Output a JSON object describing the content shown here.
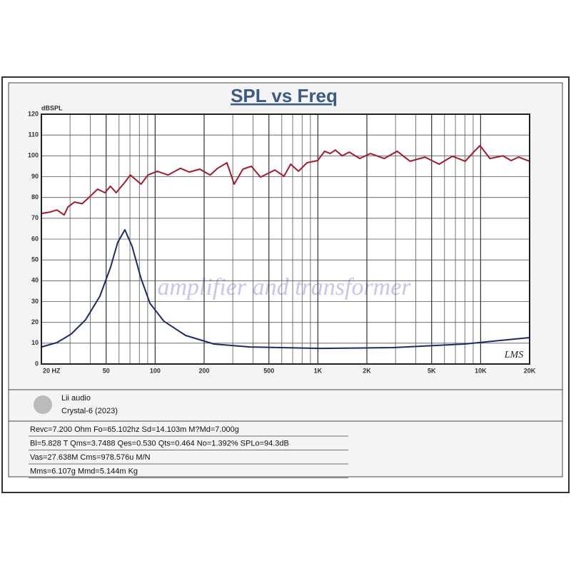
{
  "chart_data": {
    "type": "line",
    "title": "SPL vs Freq",
    "y_label": "dBSPL",
    "annotations": [
      "amplifier and transformer",
      "LMS"
    ],
    "xscale": "log",
    "xlim": [
      20,
      20000
    ],
    "ylim": [
      0,
      120
    ],
    "xticks": [
      {
        "value": 20,
        "label": "20  HZ"
      },
      50,
      100,
      200,
      500,
      {
        "value": 1000,
        "label": "1K"
      },
      {
        "value": 2000,
        "label": "2K"
      },
      {
        "value": 5000,
        "label": "5K"
      },
      {
        "value": 10000,
        "label": "10K"
      },
      {
        "value": 20000,
        "label": "20K"
      }
    ],
    "x_minor_grid": [
      30,
      40,
      60,
      70,
      80,
      90,
      300,
      400,
      600,
      700,
      800,
      900,
      3000,
      4000,
      6000,
      7000,
      8000,
      9000
    ],
    "yticks": [
      0,
      10,
      20,
      30,
      40,
      50,
      60,
      70,
      80,
      90,
      100,
      110,
      120
    ],
    "grid": true,
    "series": [
      {
        "color": "#a31c2b",
        "x": [
          20,
          22.6,
          24.9,
          27.6,
          29.1,
          32,
          35.6,
          39.2,
          44.3,
          49.2,
          53.1,
          57.6,
          65.3,
          70.3,
          81.9,
          90.3,
          103,
          120,
          143,
          162,
          188,
          218,
          242,
          276,
          306,
          346,
          390,
          444,
          544,
          619,
          680,
          760,
          857,
          996,
          1100,
          1190,
          1280,
          1410,
          1560,
          1810,
          2100,
          2560,
          3070,
          3690,
          4550,
          5560,
          6710,
          8040,
          9150,
          9920,
          11400,
          13700,
          15400,
          17100,
          20000
        ],
        "values": [
          72.3,
          73,
          74,
          71.6,
          75.4,
          77.8,
          77,
          80,
          84,
          82.3,
          85.4,
          82.3,
          87.4,
          90.8,
          86.4,
          90.8,
          92.6,
          90.8,
          94,
          92.2,
          93.6,
          90.8,
          94,
          96.7,
          86.4,
          93.6,
          95,
          89.8,
          93.2,
          90.2,
          96,
          92.6,
          96.7,
          97.7,
          102.2,
          101.1,
          102.8,
          100,
          101.8,
          98.7,
          101.1,
          98.7,
          102.2,
          97.4,
          99.4,
          96,
          99.8,
          97.4,
          102.2,
          104.9,
          98.7,
          100,
          97.7,
          99.4,
          97.4
        ]
      },
      {
        "color": "#1f2a6b",
        "x": [
          20,
          24.9,
          30.5,
          37.4,
          45.8,
          53.1,
          58.8,
          65.1,
          72.1,
          81.9,
          93,
          113,
          154,
          230,
          382,
          1050,
          2900,
          7960,
          13200,
          20000
        ],
        "values": [
          8.2,
          10.3,
          14.4,
          21.3,
          32.6,
          46.3,
          58.3,
          64.5,
          56.6,
          41.1,
          29.1,
          20.6,
          13.7,
          9.6,
          8.2,
          7.5,
          7.9,
          9.6,
          11.3,
          12.7
        ]
      }
    ]
  },
  "info": {
    "brand": "Lii audio",
    "model": "Crystal-6 (2023)",
    "params": [
      "Revc=7.200 Ohm Fo=65.102hz Sd=14.103m M?Md=7.000g",
      "Bl=5.828 T Qms=3.7488  Qes=0.530  Qts=0.464 No=1.392% SPLo=94.3dB",
      "Vas=27.638M Cms=978.576u M/N",
      "Mms=6.107g Mmd=5.144m Kg"
    ]
  }
}
